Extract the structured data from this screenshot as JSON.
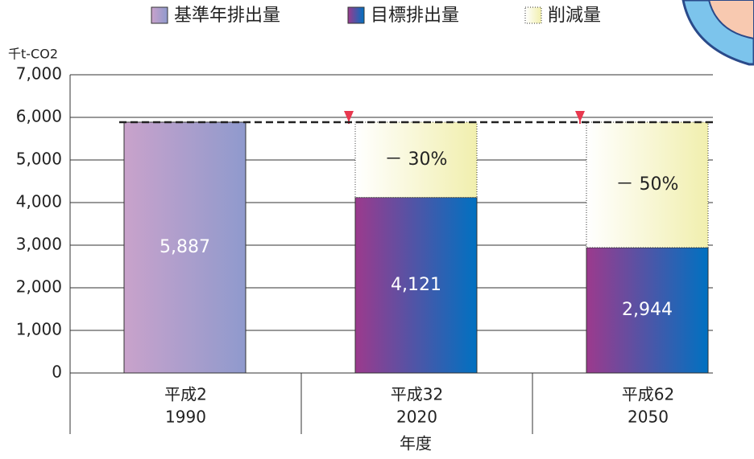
{
  "chart_data": {
    "type": "stacked-bar",
    "y_label": "千t-CO2",
    "x_label": "年度",
    "categories": [
      "平成2",
      "平成32",
      "平成62"
    ],
    "years": [
      "1990",
      "2020",
      "2050"
    ],
    "series": [
      {
        "name": "基準年排出量",
        "color": "#c9a2cb",
        "color_end": "#8f9acd",
        "values": [
          5887,
          null,
          null
        ],
        "value_labels": [
          "5,887",
          null,
          null
        ]
      },
      {
        "name": "目標排出量",
        "color": "#9c3a8d",
        "color_end": "#0071c1",
        "values": [
          null,
          4121,
          2944
        ],
        "value_labels": [
          null,
          "4,121",
          "2,944"
        ]
      },
      {
        "name": "削減量",
        "color": "#ffffff",
        "color_end": "#f1efae",
        "values": [
          null,
          1766,
          2943
        ]
      }
    ],
    "reduction_labels": [
      null,
      "－ 30%",
      "－ 50%"
    ],
    "reference_line": 5887,
    "arrow_color": "#e8384f",
    "ylim": [
      0,
      7000
    ],
    "yticks": [
      0,
      {
        "value": 1000,
        "label": "1,000"
      },
      {
        "value": 2000,
        "label": "2,000"
      },
      {
        "value": 3000,
        "label": "3,000"
      },
      {
        "value": 4000,
        "label": "4,000"
      },
      {
        "value": 5000,
        "label": "5,000"
      },
      {
        "value": 6000,
        "label": "6,000"
      },
      {
        "value": 7000,
        "label": "7,000"
      }
    ],
    "grid": true
  }
}
